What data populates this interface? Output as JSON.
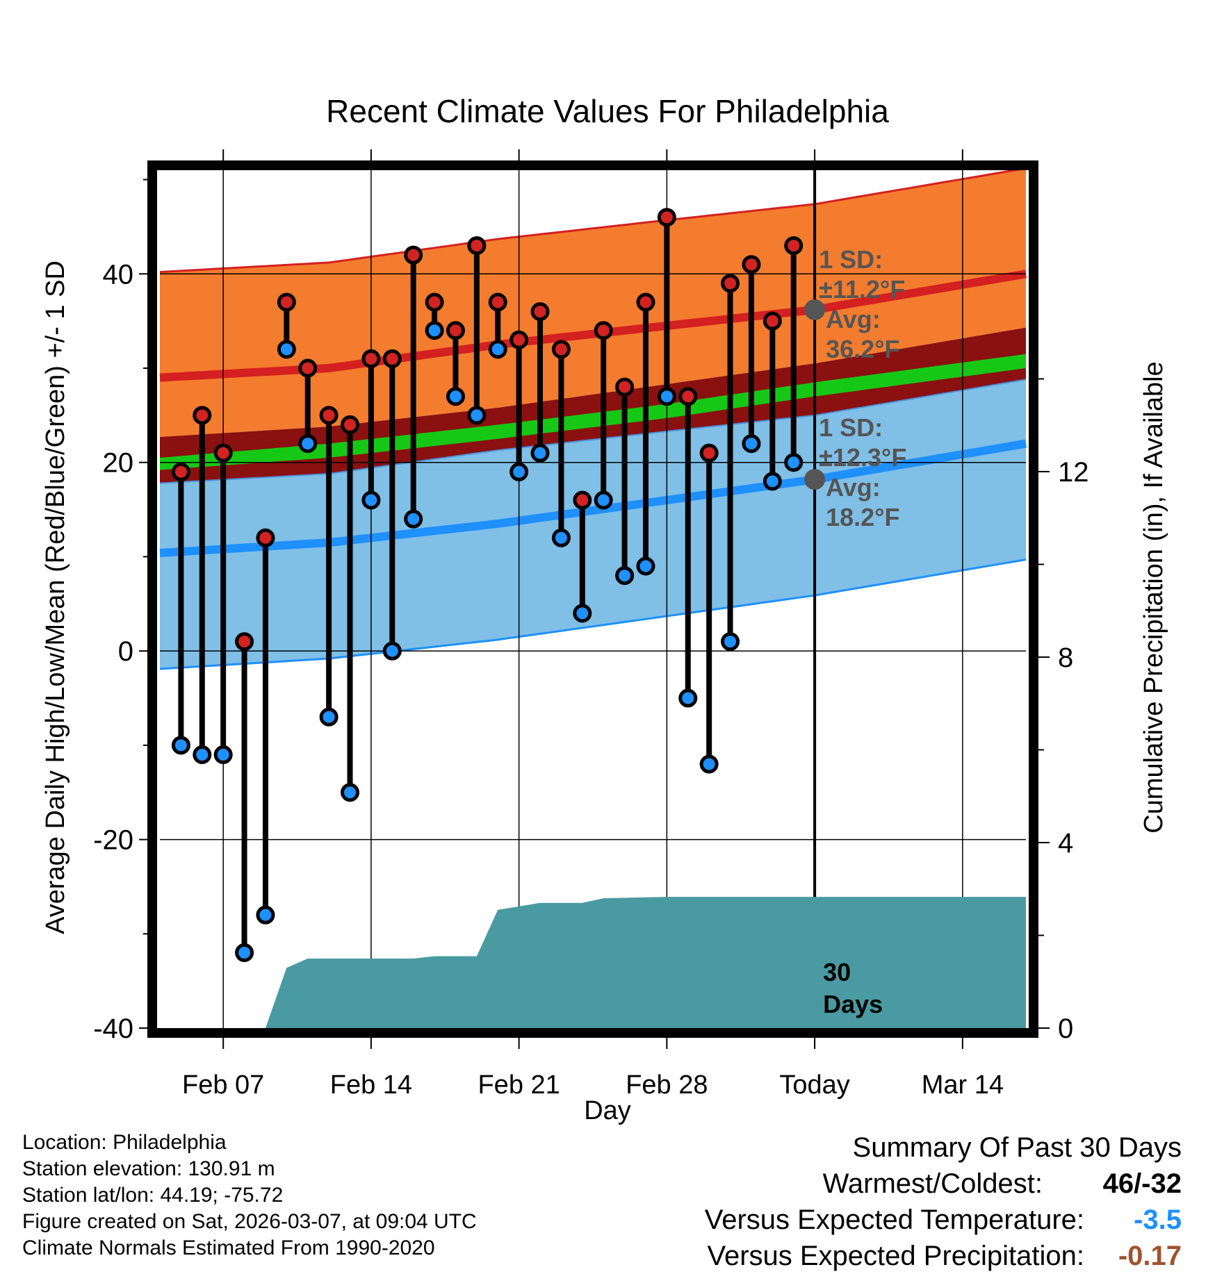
{
  "chart_data": {
    "type": "line",
    "title": "Recent Climate Values For Philadelphia",
    "xlabel": "Day",
    "ylabel": "Average Daily High/Low/Mean (Red/Blue/Green) +/- 1 SD",
    "y2label": "Cumulative Precipitation (in), If Available",
    "ylim": [
      -40,
      51
    ],
    "y2lim": [
      0,
      18.5
    ],
    "yticks": [
      -40,
      -20,
      0,
      20,
      40
    ],
    "y2ticks": [
      0,
      4,
      8,
      12
    ],
    "xlim": [
      0,
      41
    ],
    "x_ticks": [
      {
        "x": 3,
        "label": "Feb 07"
      },
      {
        "x": 10,
        "label": "Feb 14"
      },
      {
        "x": 17,
        "label": "Feb 21"
      },
      {
        "x": 24,
        "label": "Feb 28"
      },
      {
        "x": 31,
        "label": "Today"
      },
      {
        "x": 38,
        "label": "Mar 14"
      }
    ],
    "today_x": 31,
    "window_label": "30 Days",
    "days": [
      1,
      2,
      3,
      4,
      5,
      6,
      7,
      8,
      9,
      10,
      11,
      12,
      13,
      14,
      15,
      16,
      17,
      18,
      19,
      20,
      21,
      22,
      23,
      24,
      25,
      26,
      27,
      28,
      29,
      30
    ],
    "highs": [
      19,
      25,
      21,
      1,
      12,
      37,
      30,
      25,
      24,
      31,
      31,
      42,
      37,
      34,
      43,
      37,
      33,
      36,
      32,
      16,
      34,
      28,
      37,
      46,
      27,
      21,
      39,
      41,
      35,
      43
    ],
    "lows": [
      -10,
      -11,
      -11,
      -32,
      -28,
      32,
      22,
      -7,
      -15,
      16,
      0,
      14,
      34,
      27,
      25,
      32,
      19,
      21,
      12,
      4,
      16,
      8,
      9,
      27,
      -5,
      -12,
      1,
      22,
      18,
      20
    ],
    "normal_x": [
      0,
      8,
      16,
      24,
      31,
      41
    ],
    "normal_high": [
      29,
      30,
      32.5,
      34.5,
      36.2,
      40
    ],
    "normal_high_sd": 11.2,
    "normal_low": [
      10.4,
      11.5,
      13.5,
      16,
      18.2,
      22
    ],
    "normal_low_sd": 12.3,
    "normal_mean_band_upper": [
      20.5,
      22,
      24,
      26.2,
      28.5,
      31.5
    ],
    "normal_mean_band_lower": [
      19.2,
      20.5,
      22.5,
      24.7,
      27,
      30
    ],
    "precip_cumulative": [
      {
        "x": 5,
        "y": 0
      },
      {
        "x": 6,
        "y": 1.3
      },
      {
        "x": 7,
        "y": 1.5
      },
      {
        "x": 12,
        "y": 1.5
      },
      {
        "x": 13,
        "y": 1.55
      },
      {
        "x": 15,
        "y": 1.55
      },
      {
        "x": 16,
        "y": 2.55
      },
      {
        "x": 18,
        "y": 2.7
      },
      {
        "x": 20,
        "y": 2.7
      },
      {
        "x": 21,
        "y": 2.8
      },
      {
        "x": 24,
        "y": 2.83
      },
      {
        "x": 41,
        "y": 2.83
      }
    ],
    "high_annotation": [
      "1 SD:",
      "±11.2°F",
      "Avg:",
      "36.2°F"
    ],
    "low_annotation": [
      "1 SD:",
      "±12.3°F",
      "Avg:",
      "18.2°F"
    ],
    "colors": {
      "high_band": "#f47c2e",
      "high_line": "#d42020",
      "low_band": "#80bfe6",
      "low_line": "#1e90ff",
      "mean_band": "#8b1010",
      "mean_line": "#16c816",
      "precip": "#4a9aa1",
      "high_dot": "#d22222",
      "low_dot": "#1e90ff",
      "annotation": "#555555"
    }
  },
  "footer": {
    "location": "Location: Philadelphia",
    "elevation": "Station elevation: 130.91 m",
    "latlon": "Station lat/lon: 44.19; -75.72",
    "created": "Figure created on Sat, 2026-03-07, at 09:04 UTC",
    "normals": "Climate Normals Estimated From 1990-2020"
  },
  "summary": {
    "title": "Summary Of Past 30 Days",
    "warmest_label": "Warmest/Coldest:",
    "warmest_value": "46/-32",
    "temp_label": "Versus Expected Temperature:",
    "temp_value": "-3.5",
    "temp_color": "#1e90ff",
    "precip_label": "Versus Expected Precipitation:",
    "precip_value": "-0.17",
    "precip_color": "#a0522d"
  }
}
